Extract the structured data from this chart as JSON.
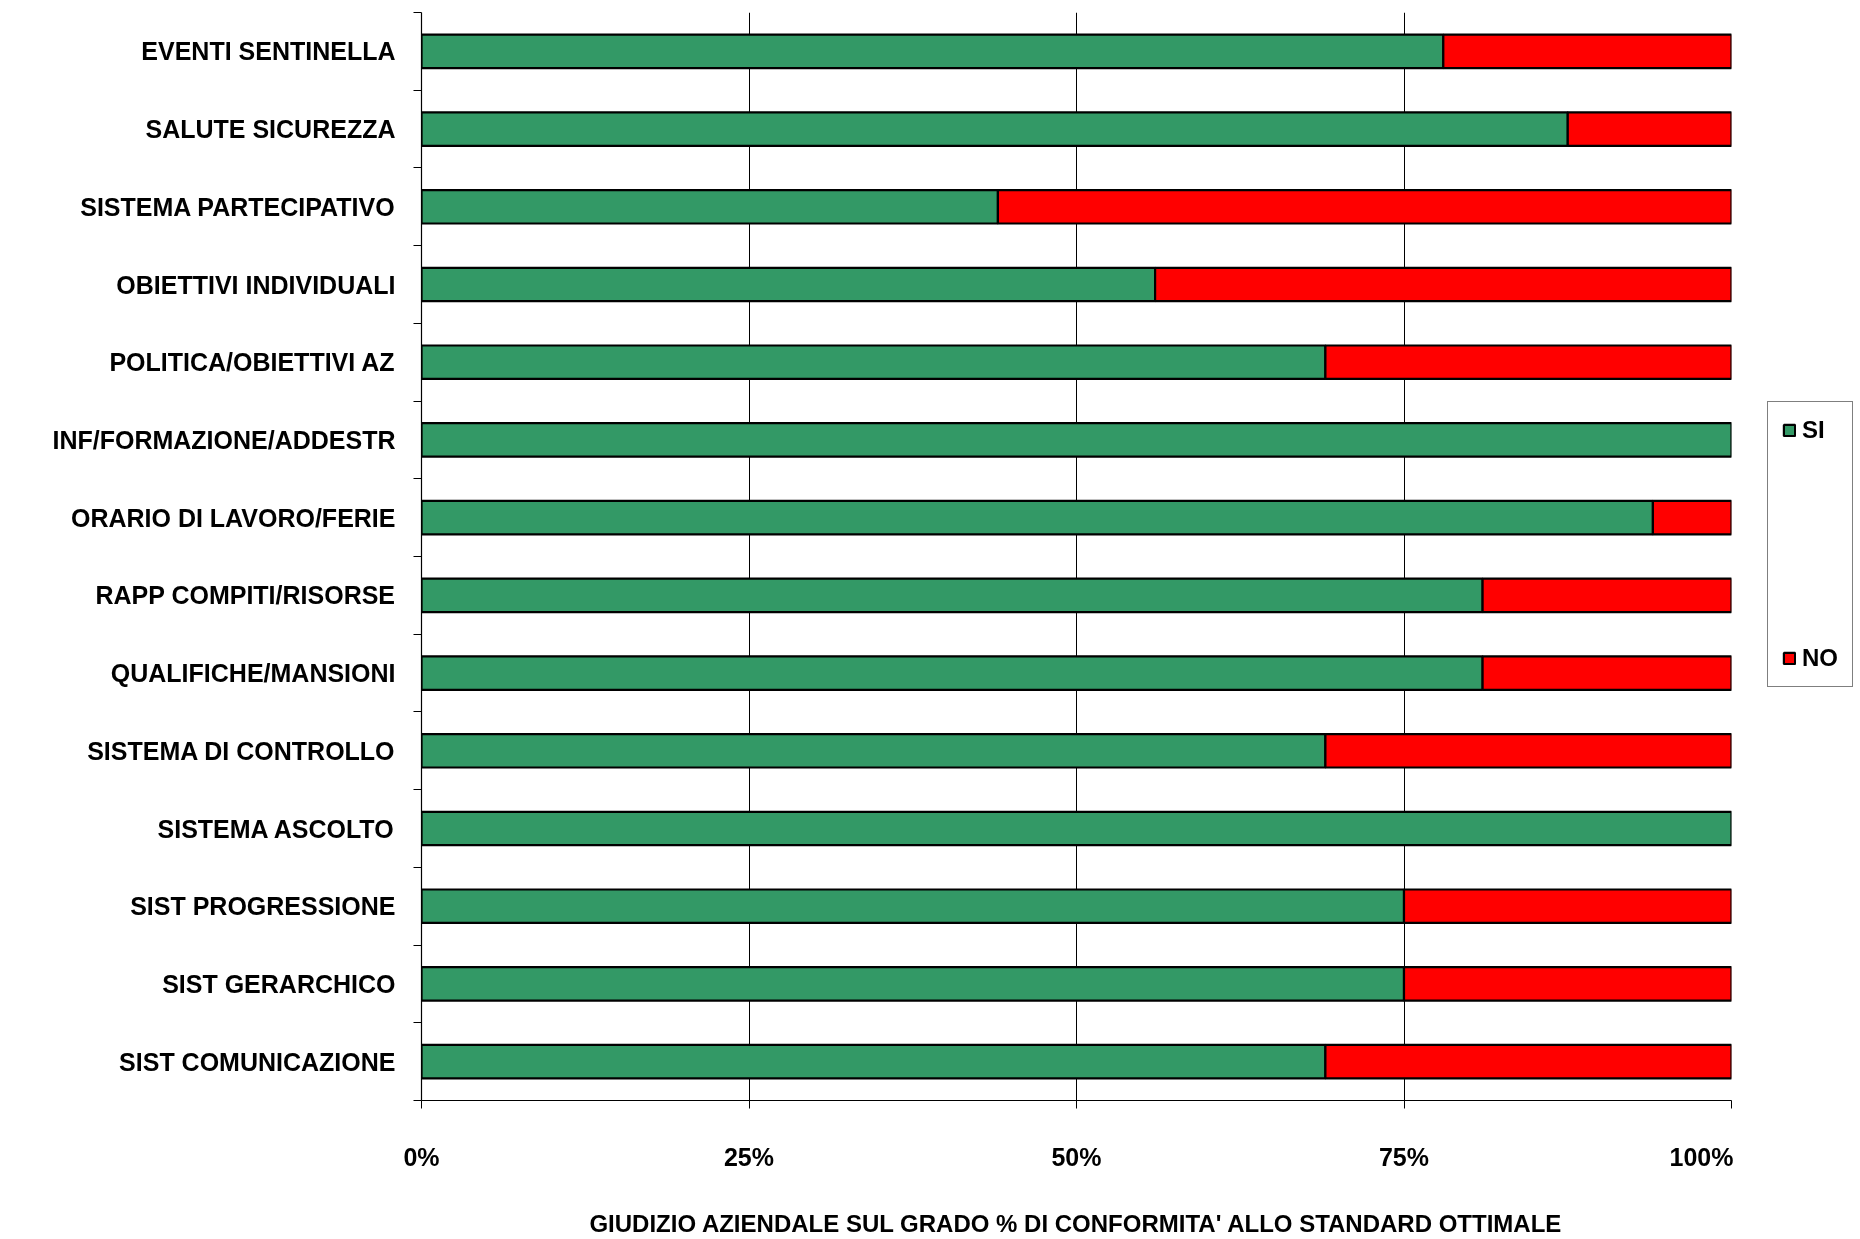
{
  "chart_data": {
    "type": "bar",
    "orientation": "horizontal",
    "stacked": true,
    "categories": [
      "EVENTI SENTINELLA",
      "SALUTE SICUREZZA",
      "SISTEMA PARTECIPATIVO",
      "OBIETTIVI INDIVIDUALI",
      "POLITICA/OBIETTIVI AZ",
      "INF/FORMAZIONE/ADDESTR",
      "ORARIO DI LAVORO/FERIE",
      "RAPP COMPITI/RISORSE",
      "QUALIFICHE/MANSIONI",
      "SISTEMA DI CONTROLLO",
      "SISTEMA ASCOLTO",
      "SIST PROGRESSIONE",
      "SIST GERARCHICO",
      "SIST COMUNICAZIONE"
    ],
    "series": [
      {
        "name": "SI",
        "color": "#339966",
        "values": [
          78,
          87.5,
          44,
          56,
          69,
          100,
          94,
          81,
          81,
          69,
          100,
          75,
          75,
          69
        ]
      },
      {
        "name": "NO",
        "color": "#ff0000",
        "values": [
          22,
          12.5,
          56,
          44,
          31,
          0,
          6,
          19,
          19,
          31,
          0,
          25,
          25,
          31
        ]
      }
    ],
    "xlim": [
      0,
      100
    ],
    "xticks": [
      {
        "value": 0,
        "label": "0%"
      },
      {
        "value": 25,
        "label": "25%"
      },
      {
        "value": 50,
        "label": "50%"
      },
      {
        "value": 75,
        "label": "75%"
      },
      {
        "value": 100,
        "label": "100%"
      }
    ],
    "xlabel": "GIUDIZIO AZIENDALE SUL GRADO % DI CONFORMITA' ALLO STANDARD OTTIMALE",
    "grid": "x",
    "legend": "right"
  }
}
